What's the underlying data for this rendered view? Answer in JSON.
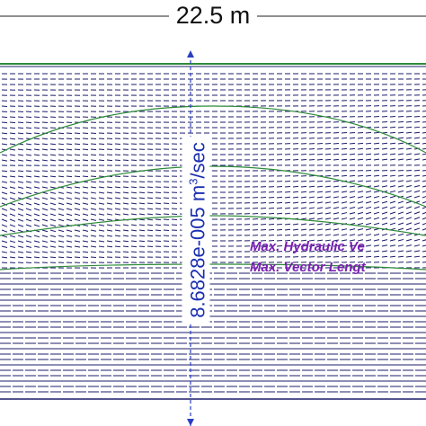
{
  "dimension_label": "22.5 m",
  "flux_label": {
    "text": "8.6828e-005 m",
    "superscript": "3",
    "suffix": "/sec"
  },
  "legend": {
    "line1": "Max. Hydraulic Ve",
    "line2": "Max. Vector Lengt"
  },
  "colors": {
    "vectors": "#1d1d6b",
    "contours": "#2e8b3a",
    "flux_text": "#1a2fb0",
    "legend_text": "#7a1fb3",
    "axis": "#2a3ec4"
  }
}
